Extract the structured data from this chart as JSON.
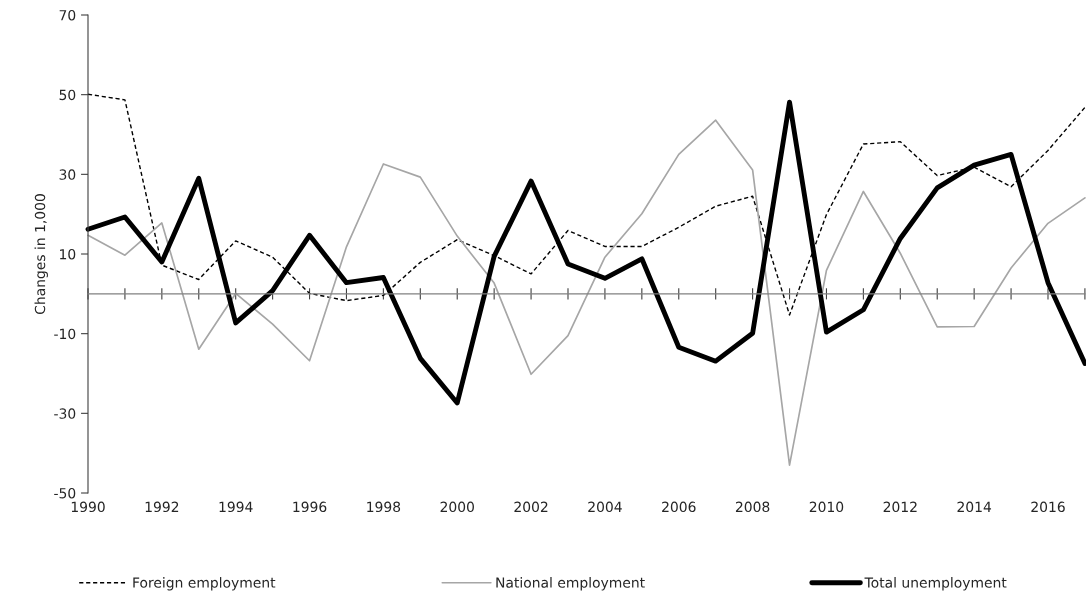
{
  "chart_data": {
    "type": "line",
    "ylabel": "Changes in 1,000",
    "x": [
      1990,
      1991,
      1992,
      1993,
      1994,
      1995,
      1996,
      1997,
      1998,
      1999,
      2000,
      2001,
      2002,
      2003,
      2004,
      2005,
      2006,
      2007,
      2008,
      2009,
      2010,
      2011,
      2012,
      2013,
      2014,
      2015,
      2016,
      2017
    ],
    "series": [
      {
        "name": "Foreign employment",
        "color": "#000000",
        "line_style": "dashed",
        "values": [
          50.1,
          48.7,
          7.2,
          3.6,
          13.3,
          9.2,
          0.1,
          -1.7,
          -0.4,
          7.9,
          13.6,
          9.6,
          5.0,
          15.9,
          11.9,
          11.9,
          16.7,
          22.0,
          24.5,
          -5.3,
          19.9,
          37.6,
          38.2,
          29.7,
          31.8,
          26.9,
          36.0,
          46.8
        ]
      },
      {
        "name": "National employment",
        "color": "#a6a6a6",
        "line_style": "solid",
        "values": [
          14.7,
          9.7,
          17.8,
          -13.9,
          0.1,
          -7.6,
          -16.8,
          11.8,
          32.6,
          29.3,
          14.5,
          2.7,
          -20.2,
          -10.5,
          9.2,
          20.1,
          35.0,
          43.6,
          31.1,
          -43.0,
          5.9,
          25.7,
          10.2,
          -8.3,
          -8.2,
          6.5,
          17.7,
          24.1
        ]
      },
      {
        "name": "Total unemployment",
        "color": "#000000",
        "line_style": "solid",
        "values": [
          16.2,
          19.3,
          8.0,
          29.0,
          -7.3,
          0.8,
          14.7,
          2.8,
          4.1,
          -16.2,
          -27.4,
          9.4,
          28.3,
          7.5,
          3.9,
          8.8,
          -13.4,
          -16.9,
          -9.9,
          48.1,
          -9.6,
          -4.0,
          13.9,
          26.6,
          32.3,
          35.0,
          2.8,
          -17.5
        ]
      }
    ],
    "xlim": [
      1990,
      2017
    ],
    "xticks": [
      1990,
      {
        "value": 1991,
        "label": null
      },
      1992,
      {
        "value": 1993,
        "label": null
      },
      1994,
      {
        "value": 1995,
        "label": null
      },
      1996,
      {
        "value": 1997,
        "label": null
      },
      1998,
      {
        "value": 1999,
        "label": null
      },
      2000,
      {
        "value": 2001,
        "label": null
      },
      2002,
      {
        "value": 2003,
        "label": null
      },
      2004,
      {
        "value": 2005,
        "label": null
      },
      2006,
      {
        "value": 2007,
        "label": null
      },
      2008,
      {
        "value": 2009,
        "label": null
      },
      2010,
      {
        "value": 2011,
        "label": null
      },
      2012,
      {
        "value": 2013,
        "label": null
      },
      2014,
      {
        "value": 2015,
        "label": null
      },
      2016,
      {
        "value": 2017,
        "label": null
      }
    ],
    "ylim": [
      -50,
      70
    ],
    "yticks": [
      -50,
      -30,
      -10,
      10,
      30,
      50,
      70
    ],
    "grid": false,
    "legend": "bottom",
    "marker": "none"
  }
}
